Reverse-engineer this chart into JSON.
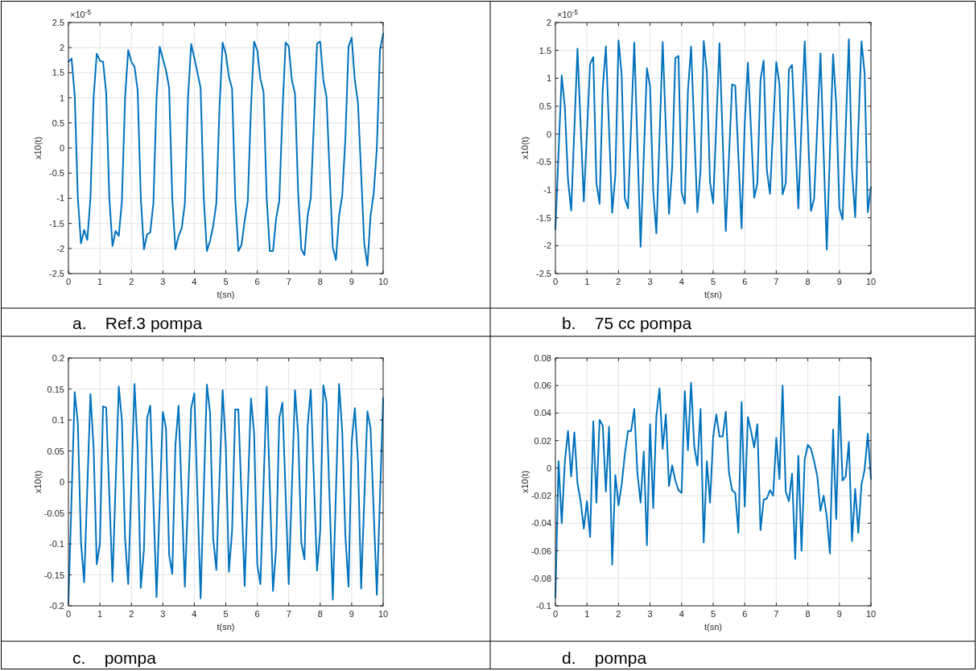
{
  "chart_data": [
    {
      "type": "line",
      "title": "a.    Ref.3 pompa",
      "xlabel": "t(sn)",
      "ylabel": "x10(t)",
      "annotations": [
        "×10$^{-5}$"
      ],
      "xlim": [
        0,
        10
      ],
      "xticks": [
        0,
        1,
        2,
        3,
        4,
        5,
        6,
        7,
        8,
        9,
        10
      ],
      "ylim": [
        -2.5,
        2.5
      ],
      "yticks": [
        -2.5,
        -2,
        -1.5,
        -1,
        -0.5,
        0,
        0.5,
        1,
        1.5,
        2,
        2.5
      ],
      "grid": true,
      "series": [
        {
          "color": "#0072bd",
          "x": [
            0,
            0.1,
            0.2,
            0.3,
            0.4,
            0.5,
            0.6,
            0.7,
            0.8,
            0.9,
            1,
            1.1,
            1.2,
            1.3,
            1.4,
            1.5,
            1.6,
            1.7,
            1.8,
            1.9,
            2,
            2.1,
            2.2,
            2.3,
            2.4,
            2.5,
            2.6,
            2.7,
            2.8,
            2.9,
            3,
            3.1,
            3.2,
            3.3,
            3.4,
            3.5,
            3.6,
            3.7,
            3.8,
            3.9,
            4,
            4.1,
            4.2,
            4.3,
            4.4,
            4.5,
            4.6,
            4.7,
            4.8,
            4.9,
            5,
            5.1,
            5.2,
            5.3,
            5.4,
            5.5,
            5.6,
            5.7,
            5.8,
            5.9,
            6,
            6.1,
            6.2,
            6.3,
            6.4,
            6.5,
            6.6,
            6.7,
            6.8,
            6.9,
            7,
            7.1,
            7.2,
            7.3,
            7.4,
            7.5,
            7.6,
            7.7,
            7.8,
            7.9,
            8,
            8.1,
            8.2,
            8.3,
            8.4,
            8.5,
            8.6,
            8.7,
            8.8,
            8.9,
            9,
            9.1,
            9.2,
            9.3,
            9.4,
            9.5,
            9.6,
            9.7,
            9.8,
            9.9,
            10
          ],
          "values": [
            1.72,
            1.78,
            1.05,
            -1.0,
            -1.9,
            -1.63,
            -1.83,
            -1.0,
            1.0,
            1.88,
            1.74,
            1.72,
            1.1,
            -1.0,
            -1.95,
            -1.65,
            -1.75,
            -1.05,
            1.0,
            1.95,
            1.72,
            1.62,
            1.15,
            -1.0,
            -2.02,
            -1.72,
            -1.68,
            -1.1,
            1.0,
            2.02,
            1.78,
            1.55,
            1.2,
            -1.0,
            -2.02,
            -1.75,
            -1.6,
            -1.1,
            1.0,
            2.07,
            1.8,
            1.5,
            1.2,
            -1.0,
            -2.05,
            -1.85,
            -1.55,
            -1.1,
            0.8,
            2.1,
            1.88,
            1.42,
            1.18,
            -1.0,
            -2.05,
            -1.93,
            -1.45,
            -1.05,
            0.8,
            2.12,
            1.95,
            1.38,
            1.12,
            -1.0,
            -2.05,
            -2.05,
            -1.4,
            -1.05,
            0.7,
            2.1,
            2.03,
            1.35,
            1.08,
            -0.9,
            -2.02,
            -2.13,
            -1.35,
            -1.0,
            0.5,
            2.08,
            2.12,
            1.35,
            1.02,
            -0.5,
            -1.98,
            -2.23,
            -1.35,
            -0.95,
            0.2,
            2.02,
            2.2,
            1.35,
            0.9,
            -0.5,
            -1.9,
            -2.34,
            -1.35,
            -0.9,
            0.0,
            1.95,
            2.28
          ]
        }
      ]
    },
    {
      "type": "line",
      "title": "b.    75 cc pompa",
      "xlabel": "t(sn)",
      "ylabel": "x10(t)",
      "annotations": [
        "×10$^{-5}$"
      ],
      "xlim": [
        0,
        10
      ],
      "xticks": [
        0,
        1,
        2,
        3,
        4,
        5,
        6,
        7,
        8,
        9,
        10
      ],
      "ylim": [
        -2.5,
        2
      ],
      "yticks": [
        -2.5,
        -2,
        -1.5,
        -1,
        -0.5,
        0,
        0.5,
        1,
        1.5,
        2
      ],
      "grid": true,
      "series": [
        {
          "color": "#0072bd",
          "x": [
            0,
            0.2,
            0.3,
            0.4,
            0.5,
            0.7,
            0.9,
            1.1,
            1.2,
            1.3,
            1.4,
            1.5,
            1.6,
            1.8,
            1.9,
            2,
            2.1,
            2.2,
            2.3,
            2.5,
            2.7,
            2.9,
            3,
            3.1,
            3.2,
            3.4,
            3.6,
            3.7,
            3.8,
            3.9,
            4,
            4.1,
            4.2,
            4.3,
            4.5,
            4.6,
            4.7,
            4.8,
            4.9,
            5,
            5.2,
            5.4,
            5.6,
            5.7,
            5.9,
            6,
            6.1,
            6.3,
            6.4,
            6.5,
            6.6,
            6.7,
            6.8,
            7,
            7.1,
            7.2,
            7.3,
            7.4,
            7.5,
            7.7,
            7.9,
            8,
            8.1,
            8.2,
            8.4,
            8.6,
            8.8,
            8.9,
            9,
            9.1,
            9.3,
            9.4,
            9.5,
            9.7,
            9.8,
            9.9,
            10
          ],
          "values": [
            -1.71,
            1.05,
            0.48,
            -0.83,
            -1.37,
            1.53,
            -1.21,
            1.26,
            1.38,
            -0.88,
            -1.25,
            0.82,
            1.57,
            -1.41,
            -0.73,
            1.68,
            1.07,
            -1.15,
            -1.33,
            1.64,
            -2.02,
            1.18,
            0.85,
            -1.03,
            -1.78,
            1.65,
            -1.43,
            -0.6,
            1.36,
            1.4,
            -1.04,
            -1.25,
            0.77,
            1.57,
            -1.4,
            -0.64,
            1.67,
            1.11,
            -0.86,
            -1.24,
            1.63,
            -1.74,
            0.89,
            0.87,
            -1.69,
            0.19,
            1.28,
            -1.14,
            -0.88,
            0.97,
            1.32,
            -0.64,
            -1.07,
            1.29,
            0.9,
            -1.08,
            -0.88,
            1.16,
            1.24,
            -1.33,
            1.66,
            0.14,
            -1.38,
            -1.15,
            1.45,
            -2.07,
            1.43,
            0.53,
            -1.32,
            -1.53,
            1.7,
            -0.64,
            -1.49,
            1.66,
            1.09,
            -1.4,
            -0.95
          ]
        }
      ]
    },
    {
      "type": "line",
      "title": "c.    pompa",
      "xlabel": "t(sn)",
      "ylabel": "x10(t)",
      "xlim": [
        0,
        10
      ],
      "xticks": [
        0,
        1,
        2,
        3,
        4,
        5,
        6,
        7,
        8,
        9,
        10
      ],
      "ylim": [
        -0.2,
        0.2
      ],
      "yticks": [
        -0.2,
        -0.15,
        -0.1,
        -0.05,
        0,
        0.05,
        0.1,
        0.15,
        0.2
      ],
      "grid": true,
      "series": [
        {
          "color": "#0072bd",
          "x": [
            0,
            0.2,
            0.3,
            0.4,
            0.5,
            0.7,
            0.8,
            0.9,
            1,
            1.1,
            1.2,
            1.4,
            1.6,
            1.7,
            1.8,
            1.9,
            2.1,
            2.2,
            2.3,
            2.4,
            2.5,
            2.6,
            2.8,
            3,
            3.1,
            3.2,
            3.3,
            3.4,
            3.5,
            3.7,
            3.9,
            4,
            4.2,
            4.4,
            4.5,
            4.6,
            4.7,
            4.9,
            5,
            5.1,
            5.2,
            5.3,
            5.4,
            5.6,
            5.8,
            5.9,
            6,
            6.1,
            6.3,
            6.5,
            6.6,
            6.7,
            6.8,
            7,
            7.2,
            7.3,
            7.4,
            7.5,
            7.6,
            7.7,
            7.9,
            8,
            8.1,
            8.2,
            8.4,
            8.6,
            8.7,
            8.8,
            8.9,
            9,
            9.1,
            9.2,
            9.3,
            9.5,
            9.6,
            9.8,
            10
          ],
          "values": [
            -0.195,
            0.145,
            0.094,
            -0.098,
            -0.162,
            0.142,
            0.055,
            -0.133,
            -0.1,
            0.122,
            0.12,
            -0.161,
            0.154,
            0.099,
            -0.092,
            -0.165,
            0.158,
            0.055,
            -0.171,
            -0.109,
            0.103,
            0.123,
            -0.186,
            0.113,
            0.087,
            -0.118,
            -0.148,
            0.06,
            0.123,
            -0.169,
            0.119,
            0.143,
            -0.188,
            0.157,
            0.112,
            -0.092,
            -0.142,
            0.148,
            0.058,
            -0.145,
            -0.079,
            0.117,
            0.117,
            -0.168,
            0.135,
            0.079,
            -0.133,
            -0.165,
            0.154,
            -0.176,
            -0.107,
            0.103,
            0.128,
            -0.165,
            0.148,
            0.077,
            -0.098,
            -0.125,
            0.09,
            0.149,
            -0.143,
            -0.079,
            0.156,
            0.129,
            -0.19,
            0.158,
            0.081,
            -0.087,
            -0.169,
            0.064,
            0.119,
            0.034,
            -0.172,
            0.114,
            0.086,
            -0.182,
            0.135
          ]
        }
      ]
    },
    {
      "type": "line",
      "title": "d.    pompa",
      "xlabel": "t(sn)",
      "ylabel": "x10(t)",
      "xlim": [
        0,
        10
      ],
      "xticks": [
        0,
        1,
        2,
        3,
        4,
        5,
        6,
        7,
        8,
        9,
        10
      ],
      "ylim": [
        -0.1,
        0.08
      ],
      "yticks": [
        -0.1,
        -0.08,
        -0.06,
        -0.04,
        -0.02,
        0,
        0.02,
        0.04,
        0.06,
        0.08
      ],
      "grid": true,
      "series": [
        {
          "color": "#0072bd",
          "x": [
            0,
            0.1,
            0.2,
            0.3,
            0.4,
            0.5,
            0.6,
            0.7,
            0.8,
            0.9,
            1,
            1.1,
            1.2,
            1.3,
            1.4,
            1.5,
            1.6,
            1.7,
            1.8,
            1.9,
            2,
            2.1,
            2.2,
            2.3,
            2.4,
            2.5,
            2.6,
            2.7,
            2.8,
            2.9,
            3,
            3.1,
            3.2,
            3.3,
            3.4,
            3.5,
            3.6,
            3.7,
            3.8,
            3.9,
            4,
            4.1,
            4.2,
            4.3,
            4.4,
            4.5,
            4.6,
            4.7,
            4.8,
            4.9,
            5,
            5.1,
            5.2,
            5.3,
            5.4,
            5.5,
            5.6,
            5.7,
            5.8,
            5.9,
            6,
            6.1,
            6.2,
            6.3,
            6.4,
            6.5,
            6.6,
            6.7,
            6.8,
            6.9,
            7,
            7.1,
            7.2,
            7.3,
            7.4,
            7.5,
            7.6,
            7.7,
            7.8,
            7.9,
            8,
            8.1,
            8.2,
            8.3,
            8.4,
            8.5,
            8.6,
            8.7,
            8.8,
            8.9,
            9,
            9.1,
            9.2,
            9.3,
            9.4,
            9.5,
            9.6,
            9.7,
            9.8,
            9.9,
            10
          ],
          "values": [
            -0.094,
            0.005,
            -0.04,
            0.005,
            0.027,
            -0.006,
            0.026,
            -0.011,
            -0.024,
            -0.044,
            -0.024,
            -0.05,
            0.034,
            -0.025,
            0.035,
            0.031,
            -0.017,
            0.03,
            -0.07,
            -0.005,
            -0.027,
            -0.012,
            0.01,
            0.027,
            0.027,
            0.043,
            -0.004,
            -0.025,
            0.012,
            -0.056,
            0.032,
            -0.029,
            0.038,
            0.058,
            0.014,
            0.039,
            -0.013,
            0.002,
            -0.009,
            -0.016,
            -0.018,
            0.056,
            0.013,
            0.062,
            0.016,
            0.002,
            0.043,
            -0.054,
            0.005,
            -0.025,
            0.023,
            0.039,
            0.023,
            0.023,
            0.041,
            -0.003,
            -0.016,
            -0.018,
            -0.047,
            0.048,
            -0.028,
            0.037,
            0.027,
            0.015,
            0.032,
            -0.045,
            -0.023,
            -0.022,
            -0.016,
            -0.02,
            0.022,
            -0.008,
            0.06,
            -0.017,
            -0.024,
            -0.004,
            -0.066,
            0.009,
            -0.06,
            0.006,
            0.017,
            0.014,
            0.005,
            -0.006,
            -0.031,
            -0.02,
            -0.035,
            -0.062,
            0.028,
            -0.037,
            0.052,
            -0.009,
            -0.006,
            0.019,
            -0.053,
            -0.015,
            -0.047,
            -0.012,
            -0.001,
            0.025,
            -0.008
          ]
        }
      ]
    }
  ]
}
